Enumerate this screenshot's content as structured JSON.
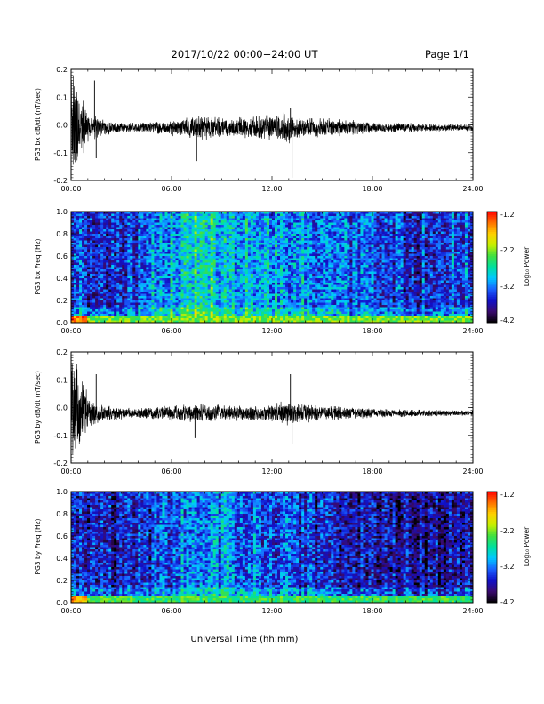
{
  "header": {
    "date_range": "2017/10/22  00:00−24:00 UT",
    "page": "Page 1/1"
  },
  "xlabel": "Universal Time (hh:mm)",
  "colors": {
    "trace": "#000000",
    "background": "#ffffff"
  },
  "colorbar": {
    "ticks": [
      "-1.2",
      "-2.2",
      "-3.2",
      "-4.2"
    ],
    "label": "Log₁₀ Power",
    "range": [
      -4.2,
      -1.2
    ],
    "colormap": [
      "#000000",
      "#3a0b6e",
      "#1010c8",
      "#1a60ff",
      "#00c8ff",
      "#00e0a0",
      "#40e040",
      "#c8f000",
      "#ffd000",
      "#ff7000",
      "#ff0000"
    ]
  },
  "chart_data": [
    {
      "type": "line",
      "ylabel": "PG3 bx dB/dt (nT/sec)",
      "xlim": [
        0,
        24
      ],
      "ylim": [
        -0.2,
        0.2
      ],
      "x_ticks": [
        "00:00",
        "06:00",
        "12:00",
        "18:00",
        "24:00"
      ],
      "y_ticks": [
        "0.2",
        "0.1",
        "0.0",
        "-0.1",
        "-0.2"
      ],
      "baseline": -0.01,
      "envelope": {
        "x": [
          0,
          0.3,
          0.6,
          1.0,
          1.5,
          2.0,
          3.0,
          4.0,
          6.0,
          7.0,
          8.0,
          9.0,
          10.0,
          11.0,
          12.0,
          13.0,
          14.0,
          16.0,
          18.0,
          20.0,
          22.0,
          24.0
        ],
        "amplitude": [
          0.2,
          0.2,
          0.13,
          0.06,
          0.04,
          0.03,
          0.02,
          0.02,
          0.03,
          0.04,
          0.05,
          0.04,
          0.04,
          0.05,
          0.05,
          0.06,
          0.04,
          0.035,
          0.02,
          0.018,
          0.015,
          0.012
        ]
      },
      "spikes": [
        {
          "x": 1.4,
          "y": 0.16
        },
        {
          "x": 1.5,
          "y": -0.12
        },
        {
          "x": 7.5,
          "y": -0.13
        },
        {
          "x": 13.2,
          "y": -0.19
        },
        {
          "x": 13.1,
          "y": 0.06
        }
      ]
    },
    {
      "type": "heatmap",
      "ylabel": "PG3 bx Freq (Hz)",
      "xlim": [
        0,
        24
      ],
      "ylim": [
        0,
        1.0
      ],
      "x_ticks": [
        "00:00",
        "06:00",
        "12:00",
        "18:00",
        "24:00"
      ],
      "y_ticks": [
        "1.0",
        "0.8",
        "0.6",
        "0.4",
        "0.2",
        "0.0"
      ],
      "value_range": [
        -4.2,
        -1.2
      ],
      "background_level_by_hour": {
        "x": [
          0,
          2,
          4,
          6,
          7,
          8,
          9,
          10,
          11,
          12,
          13,
          14,
          16,
          18,
          20,
          22,
          24
        ],
        "level": [
          -3.4,
          -3.5,
          -3.4,
          -3.0,
          -2.8,
          -2.7,
          -2.9,
          -3.0,
          -3.0,
          -3.1,
          -3.1,
          -3.2,
          -3.3,
          -3.4,
          -3.5,
          -3.4,
          -3.3
        ]
      },
      "low_freq_enhancement": -2.3
    },
    {
      "type": "line",
      "ylabel": "PG3 by dB/dt (nT/sec)",
      "xlim": [
        0,
        24
      ],
      "ylim": [
        -0.2,
        0.2
      ],
      "x_ticks": [
        "00:00",
        "06:00",
        "12:00",
        "18:00",
        "24:00"
      ],
      "y_ticks": [
        "0.2",
        "0.1",
        "0.0",
        "-0.1",
        "-0.2"
      ],
      "baseline": -0.02,
      "envelope": {
        "x": [
          0,
          0.3,
          0.6,
          1.0,
          1.5,
          2.0,
          3.0,
          4.0,
          6.0,
          7.0,
          8.0,
          9.0,
          10.0,
          11.0,
          12.0,
          13.0,
          14.0,
          16.0,
          18.0,
          20.0,
          22.0,
          24.0
        ],
        "amplitude": [
          0.2,
          0.2,
          0.14,
          0.07,
          0.04,
          0.03,
          0.025,
          0.02,
          0.03,
          0.035,
          0.035,
          0.03,
          0.03,
          0.03,
          0.035,
          0.05,
          0.035,
          0.025,
          0.018,
          0.015,
          0.012,
          0.01
        ]
      },
      "spikes": [
        {
          "x": 1.5,
          "y": 0.12
        },
        {
          "x": 7.4,
          "y": -0.11
        },
        {
          "x": 13.1,
          "y": 0.12
        },
        {
          "x": 13.2,
          "y": -0.13
        }
      ]
    },
    {
      "type": "heatmap",
      "ylabel": "PG3 by Freq (Hz)",
      "xlim": [
        0,
        24
      ],
      "ylim": [
        0,
        1.0
      ],
      "x_ticks": [
        "00:00",
        "06:00",
        "12:00",
        "18:00",
        "24:00"
      ],
      "y_ticks": [
        "1.0",
        "0.8",
        "0.6",
        "0.4",
        "0.2",
        "0.0"
      ],
      "value_range": [
        -4.2,
        -1.2
      ],
      "background_level_by_hour": {
        "x": [
          0,
          2,
          4,
          6,
          7,
          8,
          9,
          10,
          11,
          12,
          13,
          14,
          16,
          18,
          20,
          22,
          24
        ],
        "level": [
          -3.6,
          -3.7,
          -3.6,
          -3.3,
          -3.2,
          -3.1,
          -3.2,
          -3.2,
          -3.3,
          -3.4,
          -3.4,
          -3.5,
          -3.6,
          -3.7,
          -3.8,
          -3.8,
          -3.6
        ]
      },
      "low_freq_enhancement": -2.5
    }
  ]
}
